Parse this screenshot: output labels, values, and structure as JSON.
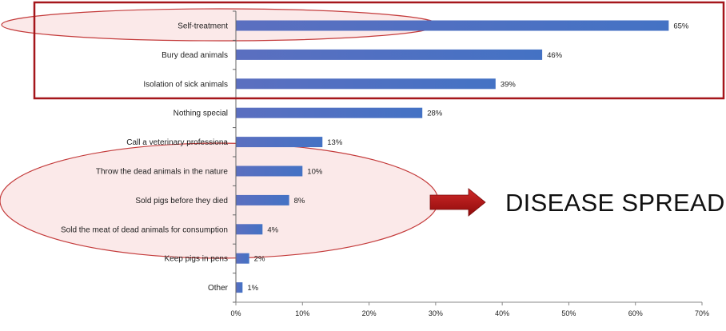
{
  "chart_data": {
    "type": "bar",
    "orientation": "horizontal",
    "categories": [
      "Self-treatment",
      "Bury dead animals",
      "Isolation of sick animals",
      "Nothing special",
      "Call a veterinary professiona",
      "Throw the dead animals in the nature",
      "Sold pigs before they died",
      "Sold the meat of dead animals for consumption",
      "Keep pigs in pens",
      "Other"
    ],
    "values": [
      65,
      46,
      39,
      28,
      13,
      10,
      8,
      4,
      2,
      1
    ],
    "value_labels": [
      "65%",
      "46%",
      "39%",
      "28%",
      "13%",
      "10%",
      "8%",
      "4%",
      "2%",
      "1%"
    ],
    "xlim": [
      0,
      70
    ],
    "xticks": [
      0,
      10,
      20,
      30,
      40,
      50,
      60,
      70
    ],
    "xtick_labels": [
      "0%",
      "10%",
      "20%",
      "30%",
      "40%",
      "50%",
      "60%",
      "70%"
    ],
    "xlabel": "",
    "ylabel": "",
    "title": "",
    "grid": false,
    "bar_color": "#4472C4",
    "annotation_color": "#C00000",
    "annotations": {
      "arrow_text": "DISEASE SPREAD"
    }
  }
}
